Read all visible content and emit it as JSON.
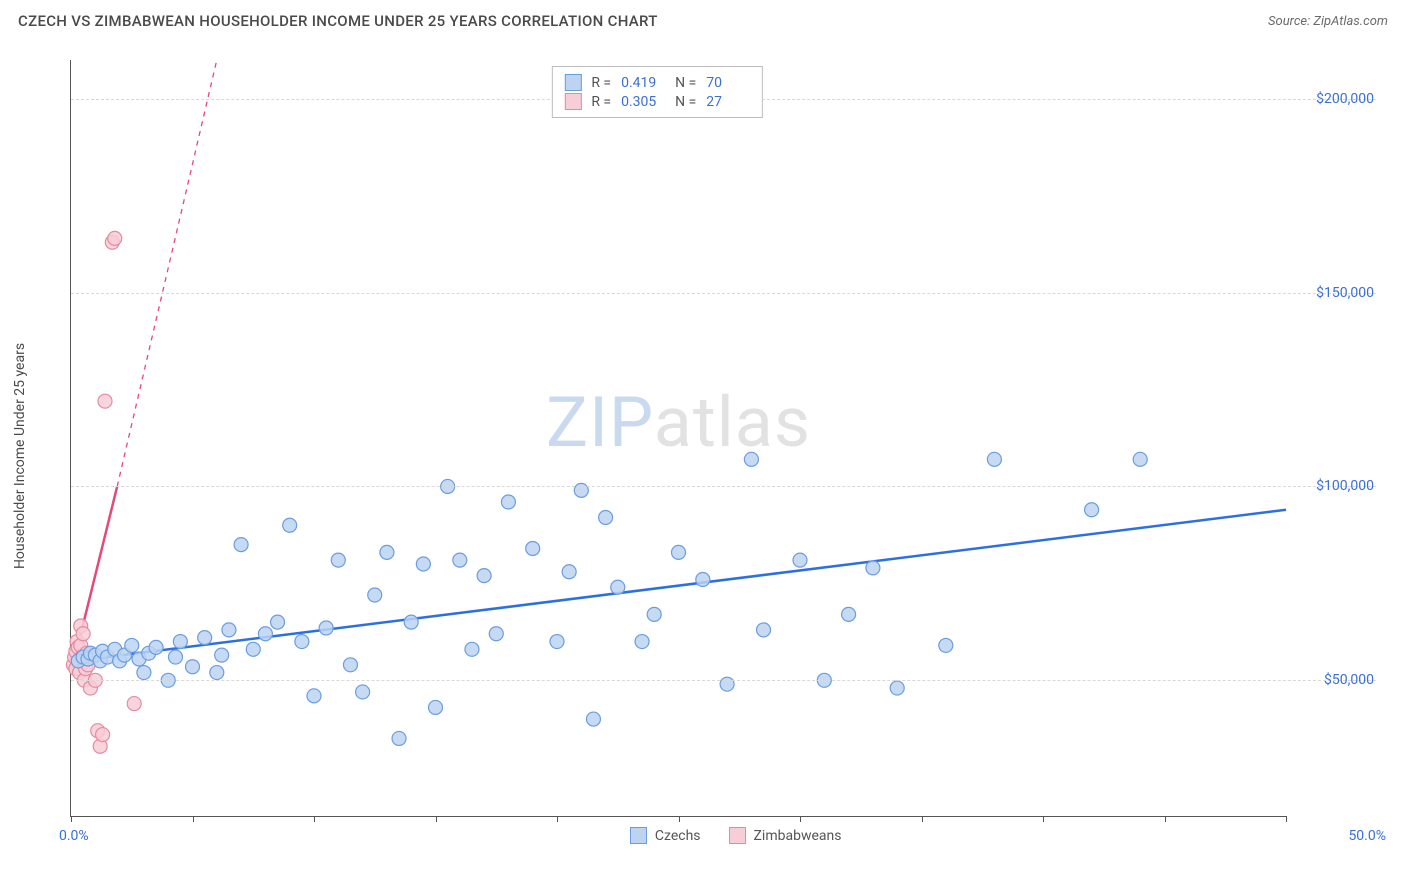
{
  "header": {
    "title": "CZECH VS ZIMBABWEAN HOUSEHOLDER INCOME UNDER 25 YEARS CORRELATION CHART",
    "source": "Source: ZipAtlas.com"
  },
  "watermark": {
    "zip": "ZIP",
    "atlas": "atlas"
  },
  "chart": {
    "type": "scatter",
    "y_axis_label": "Householder Income Under 25 years",
    "x_min": 0.0,
    "x_max": 50.0,
    "y_min": 15000,
    "y_max": 210000,
    "x_ticks": [
      0,
      5,
      10,
      15,
      20,
      25,
      30,
      35,
      40,
      45,
      50
    ],
    "y_ticks": [
      50000,
      100000,
      150000,
      200000
    ],
    "y_tick_labels": [
      "$50,000",
      "$100,000",
      "$150,000",
      "$200,000"
    ],
    "x_origin_label": "0.0%",
    "x_max_label": "50.0%",
    "background_color": "#ffffff",
    "grid_color": "#d8d8d8",
    "series": {
      "czech": {
        "label": "Czechs",
        "marker_fill": "#bcd3f2",
        "marker_stroke": "#6a9de0",
        "line_color": "#2e6fe0",
        "marker_radius": 7,
        "r_value": "0.419",
        "n_value": "70",
        "trend": {
          "x1": 0.2,
          "y1": 55000,
          "x2": 50.0,
          "y2": 94000
        },
        "points": [
          [
            0.3,
            55000
          ],
          [
            0.5,
            56000
          ],
          [
            0.7,
            55500
          ],
          [
            0.8,
            57000
          ],
          [
            1.0,
            56500
          ],
          [
            1.2,
            55000
          ],
          [
            1.3,
            57500
          ],
          [
            1.5,
            56000
          ],
          [
            1.8,
            58000
          ],
          [
            2.0,
            55000
          ],
          [
            2.2,
            56500
          ],
          [
            2.5,
            59000
          ],
          [
            2.8,
            55500
          ],
          [
            3.0,
            52000
          ],
          [
            3.2,
            57000
          ],
          [
            3.5,
            58500
          ],
          [
            4.0,
            50000
          ],
          [
            4.3,
            56000
          ],
          [
            4.5,
            60000
          ],
          [
            5.0,
            53500
          ],
          [
            5.5,
            61000
          ],
          [
            6.0,
            52000
          ],
          [
            6.2,
            56500
          ],
          [
            6.5,
            63000
          ],
          [
            7.0,
            85000
          ],
          [
            7.5,
            58000
          ],
          [
            8.0,
            62000
          ],
          [
            8.5,
            65000
          ],
          [
            9.0,
            90000
          ],
          [
            9.5,
            60000
          ],
          [
            10.0,
            46000
          ],
          [
            10.5,
            63500
          ],
          [
            11.0,
            81000
          ],
          [
            11.5,
            54000
          ],
          [
            12.0,
            47000
          ],
          [
            12.5,
            72000
          ],
          [
            13.0,
            83000
          ],
          [
            13.5,
            35000
          ],
          [
            14.0,
            65000
          ],
          [
            14.5,
            80000
          ],
          [
            15.0,
            43000
          ],
          [
            15.5,
            100000
          ],
          [
            16.0,
            81000
          ],
          [
            16.5,
            58000
          ],
          [
            17.0,
            77000
          ],
          [
            17.5,
            62000
          ],
          [
            18.0,
            96000
          ],
          [
            19.0,
            84000
          ],
          [
            20.0,
            60000
          ],
          [
            20.5,
            78000
          ],
          [
            21.0,
            99000
          ],
          [
            21.5,
            40000
          ],
          [
            22.0,
            92000
          ],
          [
            22.5,
            74000
          ],
          [
            23.5,
            60000
          ],
          [
            24.0,
            67000
          ],
          [
            25.0,
            83000
          ],
          [
            26.0,
            76000
          ],
          [
            27.0,
            49000
          ],
          [
            28.0,
            107000
          ],
          [
            28.5,
            63000
          ],
          [
            30.0,
            81000
          ],
          [
            31.0,
            50000
          ],
          [
            32.0,
            67000
          ],
          [
            33.0,
            79000
          ],
          [
            34.0,
            48000
          ],
          [
            36.0,
            59000
          ],
          [
            38.0,
            107000
          ],
          [
            42.0,
            94000
          ],
          [
            44.0,
            107000
          ]
        ]
      },
      "zimbabwean": {
        "label": "Zimbabweans",
        "marker_fill": "#f7cdd6",
        "marker_stroke": "#e78aa0",
        "line_color": "#e44a77",
        "marker_radius": 7,
        "r_value": "0.305",
        "n_value": "27",
        "trend_solid": {
          "x1": 0.05,
          "y1": 53000,
          "x2": 1.9,
          "y2": 100000
        },
        "trend_dashed": {
          "x1": 1.9,
          "y1": 100000,
          "x2": 6.0,
          "y2": 210000
        },
        "points": [
          [
            0.1,
            54000
          ],
          [
            0.15,
            56000
          ],
          [
            0.2,
            53000
          ],
          [
            0.2,
            57500
          ],
          [
            0.25,
            60000
          ],
          [
            0.3,
            55000
          ],
          [
            0.3,
            58500
          ],
          [
            0.35,
            52000
          ],
          [
            0.4,
            59000
          ],
          [
            0.4,
            64000
          ],
          [
            0.45,
            56000
          ],
          [
            0.5,
            55500
          ],
          [
            0.5,
            62000
          ],
          [
            0.55,
            50000
          ],
          [
            0.6,
            53000
          ],
          [
            0.65,
            57000
          ],
          [
            0.7,
            54000
          ],
          [
            0.8,
            48000
          ],
          [
            0.85,
            56000
          ],
          [
            1.0,
            50000
          ],
          [
            1.1,
            37000
          ],
          [
            1.2,
            33000
          ],
          [
            1.3,
            36000
          ],
          [
            1.4,
            122000
          ],
          [
            1.7,
            163000
          ],
          [
            1.8,
            164000
          ],
          [
            2.6,
            44000
          ]
        ]
      }
    }
  },
  "legend_top": {
    "r_label": "R  =",
    "n_label": "N  ="
  },
  "legend_bottom": {
    "items": [
      "czech",
      "zimbabwean"
    ]
  }
}
